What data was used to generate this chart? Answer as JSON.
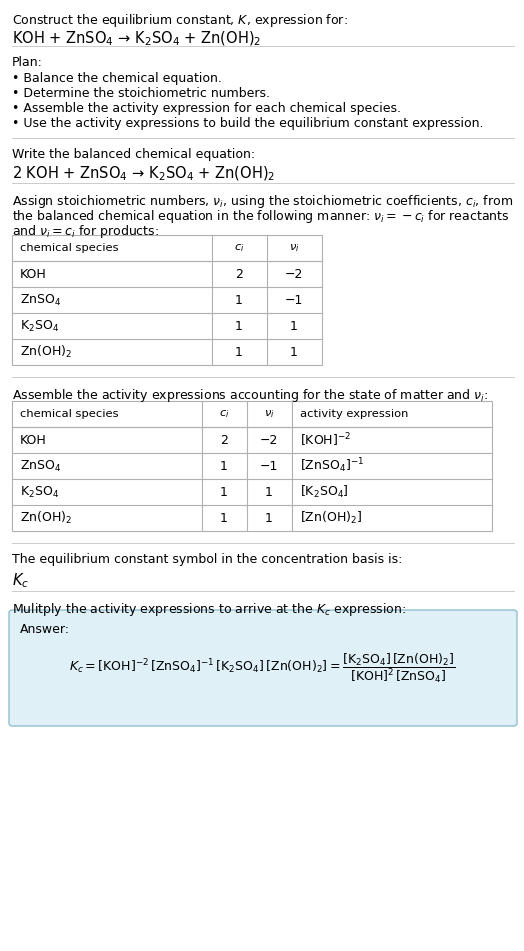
{
  "title_line1": "Construct the equilibrium constant, $K$, expression for:",
  "title_line2": "KOH + ZnSO$_4$ → K$_2$SO$_4$ + Zn(OH)$_2$",
  "plan_title": "Plan:",
  "plan_items": [
    "• Balance the chemical equation.",
    "• Determine the stoichiometric numbers.",
    "• Assemble the activity expression for each chemical species.",
    "• Use the activity expressions to build the equilibrium constant expression."
  ],
  "balanced_eq_title": "Write the balanced chemical equation:",
  "balanced_eq": "2 KOH + ZnSO$_4$ → K$_2$SO$_4$ + Zn(OH)$_2$",
  "stoich_intro1": "Assign stoichiometric numbers, $\\nu_i$, using the stoichiometric coefficients, $c_i$, from",
  "stoich_intro2": "the balanced chemical equation in the following manner: $\\nu_i = -c_i$ for reactants",
  "stoich_intro3": "and $\\nu_i = c_i$ for products:",
  "table1_headers": [
    "chemical species",
    "$c_i$",
    "$\\nu_i$"
  ],
  "table1_rows": [
    [
      "KOH",
      "2",
      "−2"
    ],
    [
      "ZnSO$_4$",
      "1",
      "−1"
    ],
    [
      "K$_2$SO$_4$",
      "1",
      "1"
    ],
    [
      "Zn(OH)$_2$",
      "1",
      "1"
    ]
  ],
  "activity_intro": "Assemble the activity expressions accounting for the state of matter and $\\nu_i$:",
  "table2_headers": [
    "chemical species",
    "$c_i$",
    "$\\nu_i$",
    "activity expression"
  ],
  "table2_rows": [
    [
      "KOH",
      "2",
      "−2",
      "[KOH]$^{-2}$"
    ],
    [
      "ZnSO$_4$",
      "1",
      "−1",
      "[ZnSO$_4$]$^{-1}$"
    ],
    [
      "K$_2$SO$_4$",
      "1",
      "1",
      "[K$_2$SO$_4$]"
    ],
    [
      "Zn(OH)$_2$",
      "1",
      "1",
      "[Zn(OH)$_2$]"
    ]
  ],
  "kc_intro": "The equilibrium constant symbol in the concentration basis is:",
  "kc_symbol": "$K_c$",
  "multiply_intro": "Mulitply the activity expressions to arrive at the $K_c$ expression:",
  "answer_label": "Answer:",
  "bg_color": "#ffffff",
  "text_color": "#000000",
  "table_border_color": "#b0b0b0",
  "answer_box_bg": "#dff0f7",
  "answer_box_border": "#90bfd0",
  "separator_color": "#cccccc",
  "font_size": 9.0,
  "figsize": [
    5.24,
    9.51
  ],
  "dpi": 100
}
